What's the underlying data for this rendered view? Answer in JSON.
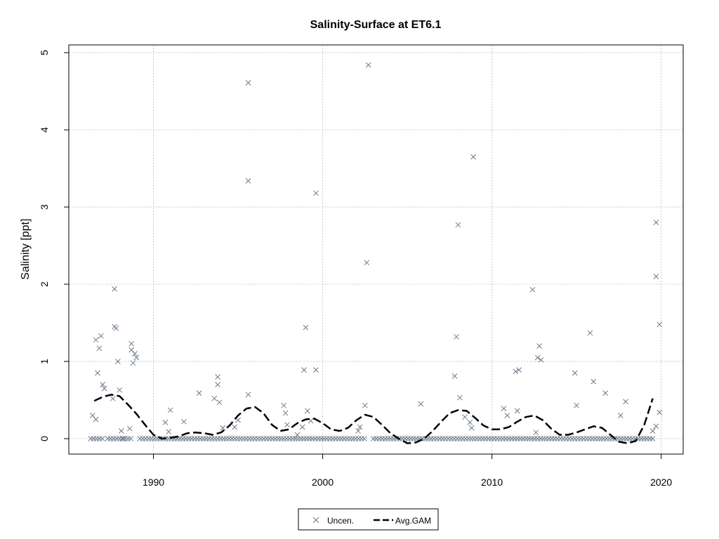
{
  "chart_data": {
    "type": "scatter",
    "title": "Salinity-Surface at ET6.1",
    "xlabel": "",
    "ylabel": "Salinity [ppt]",
    "xlim": [
      1985,
      2021.3
    ],
    "ylim": [
      -0.2,
      5.1
    ],
    "x_ticks": [
      1990,
      2000,
      2010,
      2020
    ],
    "y_ticks": [
      0,
      1,
      2,
      3,
      4,
      5
    ],
    "grid": true,
    "legend": "bottom",
    "colors": {
      "points": "#6b7a8c",
      "gam": "#000000",
      "grid": "#c8c8c8"
    },
    "series": [
      {
        "name": "Uncen.",
        "kind": "scatter",
        "marker": "x",
        "x": [
          1986.4,
          1986.6,
          1986.6,
          1986.7,
          1986.8,
          1986.9,
          1987.0,
          1987.1,
          1987.6,
          1987.7,
          1987.7,
          1987.8,
          1987.9,
          1988.0,
          1988.1,
          1988.2,
          1988.6,
          1988.7,
          1988.7,
          1988.8,
          1988.9,
          1989.0,
          1990.7,
          1990.9,
          1991.0,
          1991.8,
          1992.7,
          1993.6,
          1993.8,
          1993.8,
          1993.9,
          1994.1,
          1994.8,
          1995.0,
          1995.6,
          1995.6,
          1995.6,
          1997.7,
          1997.8,
          1997.9,
          1998.5,
          1998.8,
          1998.9,
          1999.0,
          1999.1,
          1999.3,
          1999.6,
          1999.6,
          2002.1,
          2002.2,
          2002.5,
          2002.6,
          2002.7,
          2005.8,
          2007.8,
          2007.9,
          2008.0,
          2008.1,
          2008.4,
          2008.7,
          2008.8,
          2008.9,
          2010.7,
          2010.9,
          2011.4,
          2011.5,
          2011.6,
          2012.4,
          2012.6,
          2012.7,
          2012.8,
          2012.9,
          2014.9,
          2015.0,
          2015.8,
          2016.0,
          2016.7,
          2017.6,
          2017.9,
          2019.5,
          2019.7,
          2019.7,
          2019.7,
          2019.9,
          2019.9
        ],
        "y": [
          0.3,
          0.25,
          1.28,
          0.85,
          1.17,
          1.33,
          0.7,
          0.65,
          0.52,
          1.45,
          1.94,
          1.43,
          1.0,
          0.63,
          0.1,
          0.0,
          0.13,
          1.15,
          1.23,
          0.98,
          1.1,
          1.05,
          0.21,
          0.09,
          0.37,
          0.22,
          0.59,
          0.52,
          0.7,
          0.8,
          0.47,
          0.14,
          0.15,
          0.24,
          0.57,
          4.61,
          3.34,
          0.43,
          0.33,
          0.18,
          0.05,
          0.15,
          0.89,
          1.44,
          0.36,
          0.23,
          0.89,
          3.18,
          0.1,
          0.15,
          0.43,
          2.28,
          4.84,
          0.45,
          0.81,
          1.32,
          2.77,
          0.53,
          0.28,
          0.21,
          0.14,
          3.65,
          0.39,
          0.3,
          0.87,
          0.36,
          0.89,
          1.93,
          0.08,
          1.05,
          1.2,
          1.02,
          0.85,
          0.43,
          1.37,
          0.74,
          0.59,
          0.3,
          0.48,
          0.1,
          0.16,
          2.1,
          2.8,
          1.48,
          0.34
        ]
      },
      {
        "name": "Avg.GAM",
        "kind": "line",
        "style": "dashed",
        "x": [
          1986.5,
          1987.0,
          1987.5,
          1988.0,
          1988.5,
          1989.0,
          1989.5,
          1990.0,
          1990.5,
          1991.0,
          1991.5,
          1992.0,
          1992.5,
          1993.0,
          1993.5,
          1994.0,
          1994.5,
          1995.0,
          1995.5,
          1996.0,
          1996.5,
          1997.0,
          1997.5,
          1998.0,
          1998.5,
          1999.0,
          1999.5,
          2000.0,
          2000.5,
          2001.0,
          2001.5,
          2002.0,
          2002.5,
          2003.0,
          2003.5,
          2004.0,
          2004.5,
          2005.0,
          2005.5,
          2006.0,
          2006.5,
          2007.0,
          2007.5,
          2008.0,
          2008.5,
          2009.0,
          2009.5,
          2010.0,
          2010.5,
          2011.0,
          2011.5,
          2012.0,
          2012.5,
          2013.0,
          2013.5,
          2014.0,
          2014.5,
          2015.0,
          2015.5,
          2016.0,
          2016.5,
          2017.0,
          2017.5,
          2018.0,
          2018.5,
          2019.0,
          2019.5
        ],
        "y": [
          0.49,
          0.54,
          0.57,
          0.55,
          0.44,
          0.32,
          0.18,
          0.05,
          0.0,
          0.01,
          0.03,
          0.07,
          0.08,
          0.07,
          0.05,
          0.08,
          0.17,
          0.3,
          0.39,
          0.41,
          0.33,
          0.18,
          0.1,
          0.12,
          0.2,
          0.25,
          0.26,
          0.2,
          0.12,
          0.1,
          0.14,
          0.24,
          0.31,
          0.28,
          0.18,
          0.07,
          0.0,
          -0.06,
          -0.05,
          0.0,
          0.1,
          0.22,
          0.33,
          0.37,
          0.36,
          0.27,
          0.17,
          0.12,
          0.12,
          0.15,
          0.22,
          0.28,
          0.3,
          0.24,
          0.13,
          0.05,
          0.05,
          0.08,
          0.12,
          0.16,
          0.14,
          0.05,
          -0.04,
          -0.06,
          -0.03,
          0.18,
          0.52
        ]
      }
    ]
  }
}
